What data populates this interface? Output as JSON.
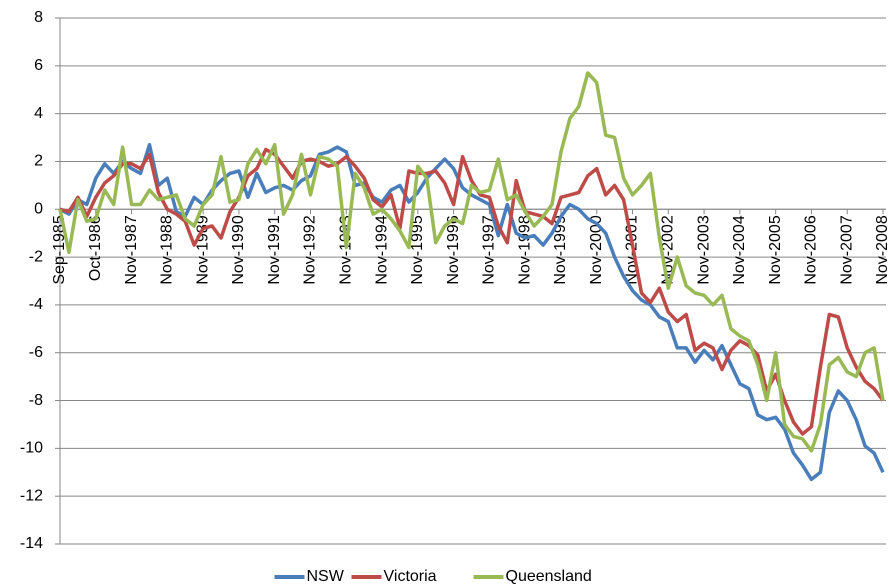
{
  "chart_data": {
    "type": "line",
    "categories": [
      "Sep-1985",
      null,
      null,
      null,
      "Oct-1986",
      null,
      null,
      null,
      "Nov-1987",
      null,
      null,
      null,
      "Nov-1988",
      null,
      null,
      null,
      "Nov-1989",
      null,
      null,
      null,
      "Nov-1990",
      null,
      null,
      null,
      "Nov-1991",
      null,
      null,
      null,
      "Nov-1992",
      null,
      null,
      null,
      "Nov-1993",
      null,
      null,
      null,
      "Nov-1994",
      null,
      null,
      null,
      "Nov-1995",
      null,
      null,
      null,
      "Nov-1996",
      null,
      null,
      null,
      "Nov-1997",
      null,
      null,
      null,
      "Nov-1998",
      null,
      null,
      null,
      "Nov-1999",
      null,
      null,
      null,
      "Nov-2000",
      null,
      null,
      null,
      "Nov-2001",
      null,
      null,
      null,
      "Nov-2002",
      null,
      null,
      null,
      "Nov-2003",
      null,
      null,
      null,
      "Nov-2004",
      null,
      null,
      null,
      "Nov-2005",
      null,
      null,
      null,
      "Nov-2006",
      null,
      null,
      null,
      "Nov-2007",
      null,
      null,
      null,
      "Nov-2008"
    ],
    "series": [
      {
        "name": "NSW",
        "color": "#4a7ebb",
        "values": [
          0,
          -0.2,
          0.4,
          0.2,
          1.3,
          1.9,
          1.5,
          2.0,
          1.7,
          1.5,
          2.7,
          1.0,
          1.3,
          -0.1,
          -0.3,
          0.5,
          0.2,
          0.8,
          1.2,
          1.5,
          1.6,
          0.5,
          1.5,
          0.7,
          0.9,
          1.0,
          0.8,
          1.2,
          1.4,
          2.3,
          2.4,
          2.6,
          2.4,
          1.0,
          1.1,
          0.5,
          0.3,
          0.8,
          1.0,
          0.3,
          0.7,
          1.3,
          1.7,
          2.1,
          1.7,
          0.9,
          0.6,
          0.4,
          0.2,
          -1.1,
          0.2,
          -1.0,
          -1.2,
          -1.1,
          -1.5,
          -1.0,
          -0.3,
          0.2,
          0.0,
          -0.4,
          -0.6,
          -1.0,
          -2.0,
          -2.8,
          -3.4,
          -3.8,
          -4.0,
          -4.5,
          -4.7,
          -5.8,
          -5.8,
          -6.4,
          -5.9,
          -6.3,
          -5.7,
          -6.5,
          -7.3,
          -7.5,
          -8.6,
          -8.8,
          -8.7,
          -9.2,
          -10.2,
          -10.7,
          -11.3,
          -11.0,
          -8.5,
          -7.6,
          -8.0,
          -8.8,
          -9.9,
          -10.2,
          -11.0
        ]
      },
      {
        "name": "Victoria",
        "color": "#be4b48",
        "values": [
          0,
          -0.1,
          0.5,
          -0.3,
          0.5,
          1.1,
          1.4,
          1.9,
          1.9,
          1.7,
          2.3,
          0.7,
          0.0,
          -0.2,
          -0.5,
          -1.5,
          -0.8,
          -0.7,
          -1.2,
          -0.1,
          0.5,
          1.4,
          1.7,
          2.5,
          2.3,
          1.8,
          1.3,
          2.0,
          2.1,
          2.0,
          1.8,
          1.9,
          2.2,
          1.8,
          1.3,
          0.4,
          0.1,
          0.6,
          -0.8,
          1.6,
          1.5,
          1.5,
          1.6,
          1.1,
          0.2,
          2.2,
          1.2,
          0.6,
          0.5,
          -0.7,
          -1.4,
          1.2,
          -0.1,
          -0.2,
          -0.3,
          -0.6,
          0.5,
          0.6,
          0.7,
          1.4,
          1.7,
          0.6,
          1.0,
          0.4,
          -1.5,
          -3.5,
          -3.9,
          -3.3,
          -4.3,
          -4.7,
          -4.4,
          -5.9,
          -5.6,
          -5.8,
          -6.7,
          -5.9,
          -5.5,
          -5.7,
          -6.1,
          -7.6,
          -6.9,
          -8.0,
          -8.9,
          -9.4,
          -9.1,
          -6.6,
          -4.4,
          -4.5,
          -5.8,
          -6.6,
          -7.2,
          -7.5,
          -8.0
        ]
      },
      {
        "name": "Queensland",
        "color": "#98b954",
        "values": [
          0,
          -1.8,
          0.4,
          -0.5,
          -0.4,
          0.8,
          0.2,
          2.6,
          0.2,
          0.2,
          0.8,
          0.4,
          0.5,
          0.6,
          -0.4,
          -0.7,
          0.2,
          0.6,
          2.2,
          0.3,
          0.4,
          1.9,
          2.5,
          1.9,
          2.7,
          -0.2,
          0.6,
          2.3,
          0.6,
          2.2,
          2.1,
          1.8,
          -1.6,
          1.5,
          0.9,
          -0.2,
          0.0,
          -0.4,
          -0.9,
          -1.6,
          1.8,
          1.3,
          -1.4,
          -0.7,
          -0.4,
          -0.6,
          1.0,
          0.7,
          0.8,
          2.1,
          0.4,
          0.6,
          -0.1,
          -0.7,
          -0.3,
          0.2,
          2.4,
          3.8,
          4.3,
          5.7,
          5.3,
          3.1,
          3.0,
          1.3,
          0.6,
          1.0,
          1.5,
          -1.2,
          -3.3,
          -2.0,
          -3.2,
          -3.5,
          -3.6,
          -4.0,
          -3.6,
          -5.0,
          -5.3,
          -5.5,
          -6.5,
          -8.0,
          -6.0,
          -9.0,
          -9.5,
          -9.6,
          -10.1,
          -9.0,
          -6.5,
          -6.2,
          -6.8,
          -7.0,
          -6.0,
          -5.8,
          -8.0
        ]
      }
    ],
    "ylim": [
      -14,
      8
    ],
    "yticks": [
      -14,
      -12,
      -10,
      -8,
      -6,
      -4,
      -2,
      0,
      2,
      4,
      6,
      8
    ],
    "grid": true,
    "legend": "bottom"
  }
}
